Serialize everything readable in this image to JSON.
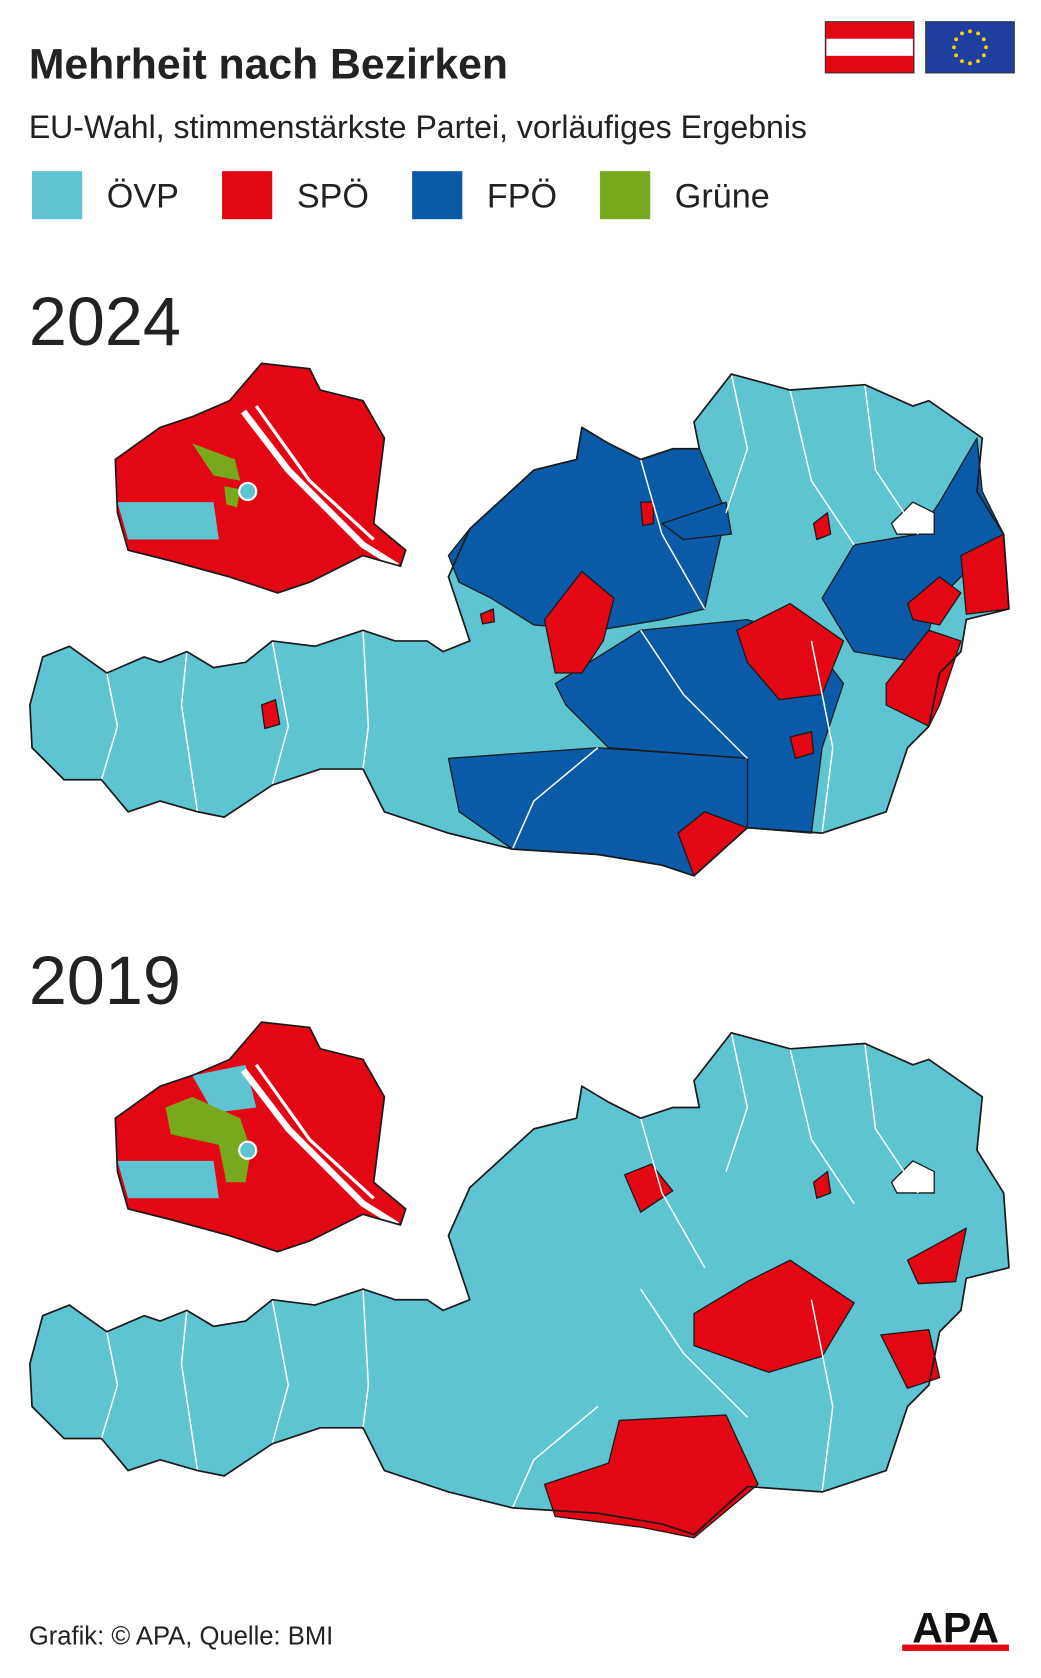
{
  "header": {
    "title": "Mehrheit nach Bezirken",
    "subtitle": "EU-Wahl, stimmenstärkste Partei, vorläufiges Ergebnis"
  },
  "legend": {
    "items": [
      {
        "name": "ÖVP",
        "color": "#5ec4d1"
      },
      {
        "name": "SPÖ",
        "color": "#e30613"
      },
      {
        "name": "FPÖ",
        "color": "#0a5aa8"
      },
      {
        "name": "Grüne",
        "color": "#78a81e"
      }
    ]
  },
  "maps": [
    {
      "year": "2024"
    },
    {
      "year": "2019"
    }
  ],
  "footer": {
    "source": "Grafik: © APA, Quelle: BMI",
    "logo": "APA"
  }
}
